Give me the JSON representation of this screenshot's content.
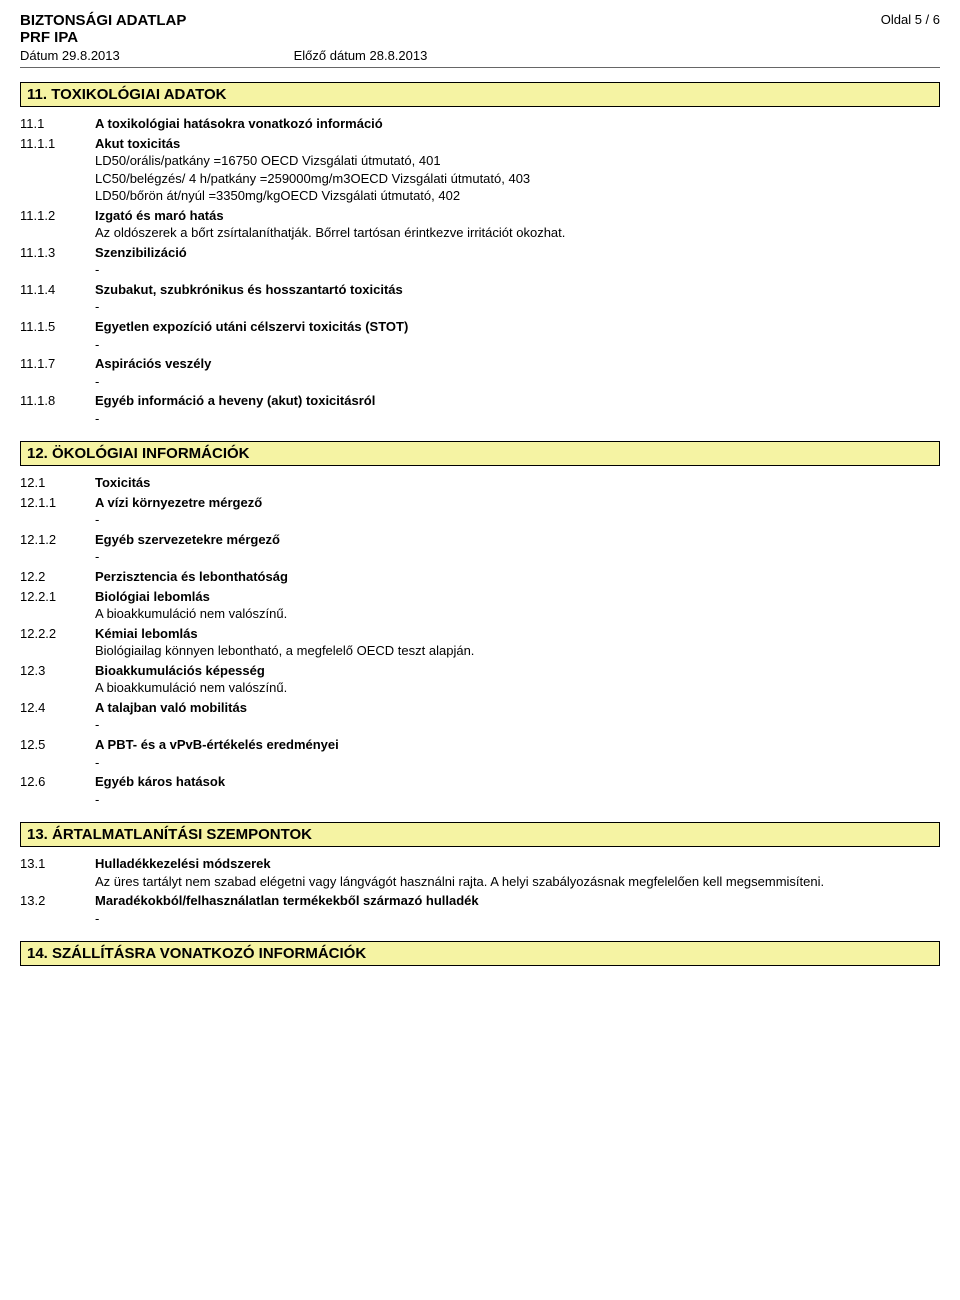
{
  "header": {
    "title": "BIZTONSÁGI ADATLAP",
    "product": "PRF IPA",
    "date_label": "Dátum 29.8.2013",
    "prev_date_label": "Előző dátum 28.8.2013",
    "page_label": "Oldal  5 / 6"
  },
  "section11": {
    "heading": "11. TOXIKOLÓGIAI ADATOK",
    "items": [
      {
        "num": "11.1",
        "title": "A toxikológiai hatásokra vonatkozó információ",
        "bold": true,
        "text": ""
      },
      {
        "num": "11.1.1",
        "title": "Akut toxicitás",
        "bold": true,
        "lines": [
          "LD50/orális/patkány =16750 OECD Vizsgálati útmutató, 401",
          "LC50/belégzés/ 4  h/patkány =259000mg/m3OECD Vizsgálati útmutató, 403",
          "LD50/bőrön át/nyúl =3350mg/kgOECD Vizsgálati útmutató, 402"
        ]
      },
      {
        "num": "11.1.2",
        "title": "Izgató és maró hatás",
        "bold": true,
        "lines": [
          "Az oldószerek a bőrt zsírtalaníthatják.   Bőrrel tartósan érintkezve irritációt okozhat."
        ]
      },
      {
        "num": "11.1.3",
        "title": "Szenzibilizáció",
        "bold": true,
        "lines": [
          "-"
        ]
      },
      {
        "num": "11.1.4",
        "title": "Szubakut, szubkrónikus és hosszantartó toxicitás",
        "bold": true,
        "lines": [
          "-"
        ]
      },
      {
        "num": "11.1.5",
        "title": "Egyetlen expozíció utáni célszervi toxicitás (STOT)",
        "bold": true,
        "lines": [
          "-"
        ]
      },
      {
        "num": "11.1.7",
        "title": "Aspirációs veszély",
        "bold": true,
        "lines": [
          "-"
        ]
      },
      {
        "num": "11.1.8",
        "title": "Egyéb információ a heveny (akut) toxicitásról",
        "bold": true,
        "lines": [
          "-"
        ]
      }
    ]
  },
  "section12": {
    "heading": "12. ÖKOLÓGIAI INFORMÁCIÓK",
    "items": [
      {
        "num": "12.1",
        "title": "Toxicitás",
        "bold": true
      },
      {
        "num": "12.1.1",
        "title": "A vízi környezetre mérgező",
        "bold": true,
        "lines": [
          "-"
        ]
      },
      {
        "num": "12.1.2",
        "title": "Egyéb szervezetekre mérgező",
        "bold": true,
        "lines": [
          "-"
        ]
      },
      {
        "num": "12.2",
        "title": "Perzisztencia és lebonthatóság",
        "bold": true
      },
      {
        "num": "12.2.1",
        "title": "Biológiai lebomlás",
        "bold": true,
        "lines": [
          "A bioakkumuláció nem valószínű."
        ]
      },
      {
        "num": "12.2.2",
        "title": "Kémiai lebomlás",
        "bold": true,
        "lines": [
          "Biológiailag könnyen lebontható, a megfelelő OECD teszt alapján."
        ]
      },
      {
        "num": "12.3",
        "title": "Bioakkumulációs képesség",
        "bold": true,
        "lines": [
          "A bioakkumuláció nem valószínű."
        ]
      },
      {
        "num": "12.4",
        "title": "A talajban való mobilitás",
        "bold": true,
        "lines": [
          "-"
        ]
      },
      {
        "num": "12.5",
        "title": "A PBT- és a vPvB-értékelés eredményei",
        "bold": true,
        "lines": [
          "-"
        ]
      },
      {
        "num": "12.6",
        "title": "Egyéb káros hatások",
        "bold": true,
        "lines": [
          "-"
        ]
      }
    ]
  },
  "section13": {
    "heading": "13. ÁRTALMATLANÍTÁSI SZEMPONTOK",
    "items": [
      {
        "num": "13.1",
        "title": "Hulladékkezelési módszerek",
        "bold": true,
        "lines": [
          "Az üres tartályt nem szabad elégetni vagy lángvágót használni rajta.  A helyi szabályozásnak megfelelően kell megsemmisíteni."
        ]
      },
      {
        "num": "13.2",
        "title": "Maradékokból/felhasználatlan termékekből származó hulladék",
        "bold": true,
        "lines": [
          "-"
        ]
      }
    ]
  },
  "section14": {
    "heading": "14. SZÁLLÍTÁSRA VONATKOZÓ INFORMÁCIÓK"
  }
}
